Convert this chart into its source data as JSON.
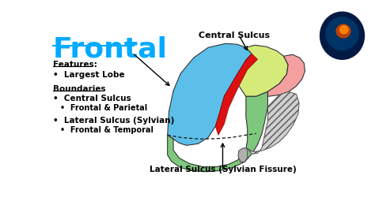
{
  "background_color": "#ffffff",
  "title": "Frontal",
  "title_color": "#00aaff",
  "text_color": "#000000",
  "brain": {
    "frontal_color": "#5bbfea",
    "parietal_color": "#d4eb7a",
    "temporal_color": "#7ec87e",
    "occipital_color": "#f4a0a0",
    "sulcus_color": "#dd1111"
  },
  "labels": {
    "central_sulcus": "Central Sulcus",
    "lateral_sulcus": "Lateral Sulcus (Sylvian Fissure)"
  }
}
